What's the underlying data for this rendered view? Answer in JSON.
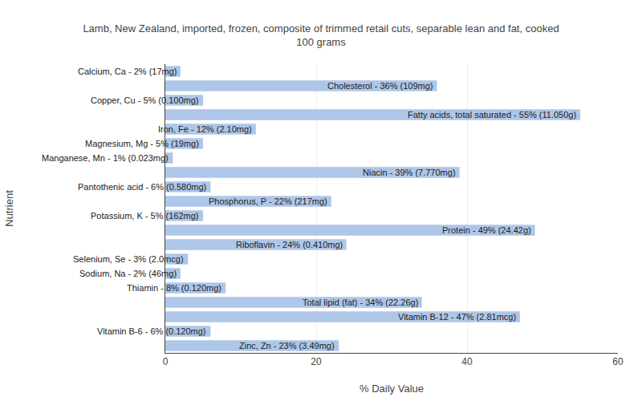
{
  "chart_data": {
    "type": "bar",
    "orientation": "horizontal",
    "title": "Lamb, New Zealand, imported, frozen, composite of trimmed retail cuts, separable lean and fat, cooked\n100 grams",
    "xlabel": "% Daily Value",
    "ylabel": "Nutrient",
    "categories": [
      "Calcium, Ca - 2% (17mg)",
      "Cholesterol - 36% (109mg)",
      "Copper, Cu - 5% (0.100mg)",
      "Fatty acids, total saturated - 55% (11.050g)",
      "Iron, Fe - 12% (2.10mg)",
      "Magnesium, Mg - 5% (19mg)",
      "Manganese, Mn - 1% (0.023mg)",
      "Niacin - 39% (7.770mg)",
      "Pantothenic acid - 6% (0.580mg)",
      "Phosphorus, P - 22% (217mg)",
      "Potassium, K - 5% (162mg)",
      "Protein - 49% (24.42g)",
      "Riboflavin - 24% (0.410mg)",
      "Selenium, Se - 3% (2.0mcg)",
      "Sodium, Na - 2% (46mg)",
      "Thiamin - 8% (0.120mg)",
      "Total lipid (fat) - 34% (22.26g)",
      "Vitamin B-12 - 47% (2.81mcg)",
      "Vitamin B-6 - 6% (0.120mg)",
      "Zinc, Zn - 23% (3.49mg)"
    ],
    "values": [
      2,
      36,
      5,
      55,
      12,
      5,
      1,
      39,
      6,
      22,
      5,
      49,
      24,
      3,
      2,
      8,
      34,
      47,
      6,
      23
    ],
    "color": "#aec6e8",
    "xlim": [
      0,
      60
    ],
    "xticks": [
      0,
      20,
      40,
      60
    ],
    "grid": true,
    "tick_labels": "x"
  }
}
